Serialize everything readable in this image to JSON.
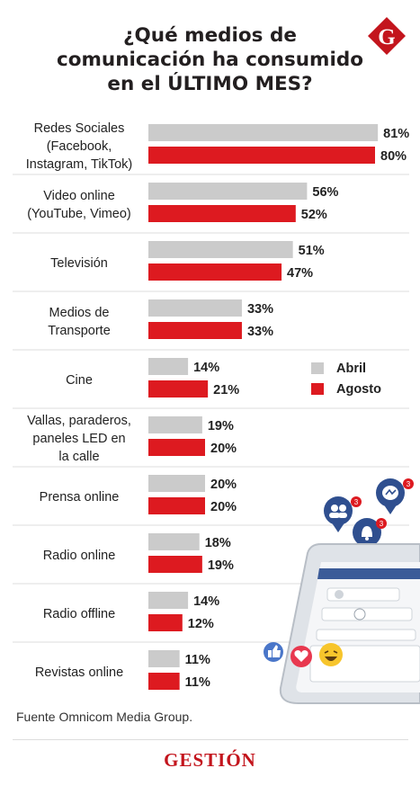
{
  "title_lines": [
    "¿Qué medios de",
    "comunicación ha consumido",
    "en el ÚLTIMO MES?"
  ],
  "logo_letter": "G",
  "legend": [
    {
      "label": "Abril",
      "color": "#cbcbcb"
    },
    {
      "label": "Agosto",
      "color": "#dd1a20"
    }
  ],
  "chart_data": {
    "type": "bar",
    "orientation": "horizontal",
    "categories": [
      [
        "Redes Sociales",
        "(Facebook,",
        "Instagram, TikTok)"
      ],
      [
        "Video online",
        "(YouTube, Vimeo)"
      ],
      [
        "Televisión"
      ],
      [
        "Medios de",
        "Transporte"
      ],
      [
        "Cine"
      ],
      [
        "Vallas, paraderos,",
        "paneles LED en",
        "la calle"
      ],
      [
        "Prensa online"
      ],
      [
        "Radio online"
      ],
      [
        "Radio offline"
      ],
      [
        "Revistas online"
      ]
    ],
    "series": [
      {
        "name": "Abril",
        "values": [
          81,
          56,
          51,
          33,
          14,
          19,
          20,
          18,
          14,
          11
        ]
      },
      {
        "name": "Agosto",
        "values": [
          80,
          52,
          47,
          33,
          21,
          20,
          20,
          19,
          12,
          11
        ]
      }
    ],
    "value_suffix": "%",
    "xlim": [
      0,
      100
    ],
    "legend_position": "right"
  },
  "source": "Fuente Omnicom Media Group.",
  "brand": "GESTIÓN",
  "notification_badges": [
    "3",
    "3",
    "3"
  ]
}
